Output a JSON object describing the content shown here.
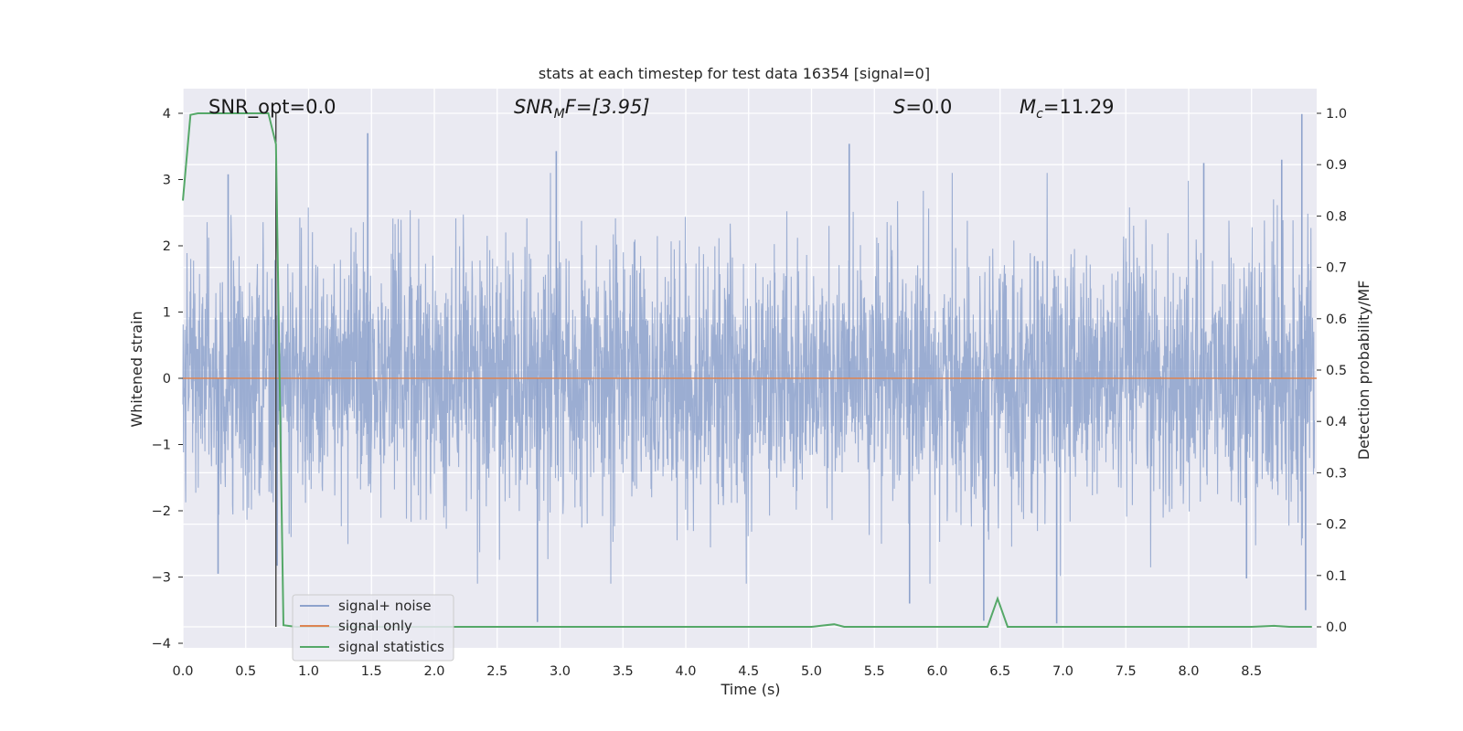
{
  "chart_data": {
    "type": "line",
    "title": "stats at each timestep for test data 16354 [signal=0]",
    "xlabel": "Time (s)",
    "ylabel": "Whitened strain",
    "y2label": "Detection probability/MF",
    "xlim": [
      0.0,
      9.0
    ],
    "ylim": [
      -4.2,
      4.2
    ],
    "y2lim": [
      -0.045,
      1.045
    ],
    "xticks": [
      "0.0",
      "0.5",
      "1.0",
      "1.5",
      "2.0",
      "2.5",
      "3.0",
      "3.5",
      "4.0",
      "4.5",
      "5.0",
      "5.5",
      "6.0",
      "6.5",
      "7.0",
      "7.5",
      "8.0",
      "8.5"
    ],
    "yticks": [
      "4",
      "3",
      "2",
      "1",
      "0",
      "−1",
      "−2",
      "−3",
      "−4"
    ],
    "y2ticks": [
      "1.0",
      "0.9",
      "0.8",
      "0.7",
      "0.6",
      "0.5",
      "0.4",
      "0.3",
      "0.2",
      "0.1",
      "0.0"
    ],
    "grid": true,
    "legend_position": "lower-left",
    "annotations": {
      "snr_opt": "SNR_opt=0.0",
      "snr_mf_base": "SNR",
      "snr_mf_sub": "M",
      "snr_mf_rest": "F=[3.95]",
      "s_italic": "S",
      "s_rest": "=0.0",
      "mc_base": "M",
      "mc_sub": "c",
      "mc_rest": "=11.29"
    },
    "marker_line_x": 0.74,
    "series": [
      {
        "name": "signal+ noise",
        "color": "#8da2cc",
        "kind": "noise",
        "amplitude_std": 0.95,
        "n_samples": 3600
      },
      {
        "name": "signal only",
        "color": "#dd8452",
        "kind": "constant",
        "value": 0.0
      },
      {
        "name": "signal statistics",
        "color": "#55a868",
        "axis": "right",
        "x": [
          0.0,
          0.06,
          0.12,
          0.2,
          0.3,
          0.4,
          0.5,
          0.6,
          0.68,
          0.74,
          0.8,
          0.9,
          1.0,
          2.0,
          3.0,
          4.0,
          5.0,
          5.07,
          5.18,
          5.26,
          5.4,
          6.0,
          6.4,
          6.48,
          6.56,
          7.0,
          8.0,
          8.5,
          8.68,
          8.8,
          8.98
        ],
        "values": [
          0.83,
          0.997,
          1.0,
          1.0,
          1.0,
          1.0,
          1.0,
          1.0,
          1.0,
          0.94,
          0.003,
          0.0,
          0.0,
          0.0,
          0.0,
          0.0,
          0.0,
          0.002,
          0.005,
          0.0,
          0.0,
          0.0,
          0.0,
          0.055,
          0.0,
          0.0,
          0.0,
          0.0,
          0.002,
          0.0,
          0.0
        ]
      }
    ],
    "spikes": [
      {
        "x": 1.47,
        "y": 3.7
      },
      {
        "x": 2.97,
        "y": 3.43
      },
      {
        "x": 5.3,
        "y": 3.54
      },
      {
        "x": 8.12,
        "y": 3.25
      },
      {
        "x": 8.74,
        "y": 3.3
      },
      {
        "x": 8.9,
        "y": 3.99
      },
      {
        "x": 0.36,
        "y": 3.08
      },
      {
        "x": 2.82,
        "y": -3.68
      },
      {
        "x": 5.78,
        "y": -3.4
      },
      {
        "x": 6.37,
        "y": -3.66
      },
      {
        "x": 6.95,
        "y": -3.7
      },
      {
        "x": 8.46,
        "y": -3.02
      },
      {
        "x": 8.93,
        "y": -3.5
      },
      {
        "x": 0.75,
        "y": -2.83
      },
      {
        "x": 0.28,
        "y": -2.95
      }
    ]
  }
}
